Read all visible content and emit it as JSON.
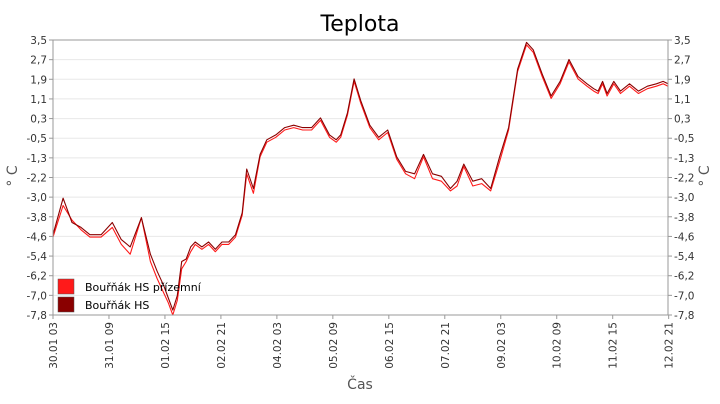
{
  "chart_data": {
    "type": "line",
    "title": "Teplota",
    "xlabel": "Čas",
    "ylabel": "° C",
    "ylim": [
      -7.8,
      3.5
    ],
    "yticks": [
      "3,5",
      "2,7",
      "1,9",
      "1,1",
      "0,3",
      "-0,5",
      "-1,3",
      "-2,2",
      "-3,0",
      "-3,8",
      "-4,6",
      "-5,4",
      "-6,2",
      "-7,0",
      "-7,8"
    ],
    "xticks": [
      "30.01 03",
      "31.01 09",
      "01.02 15",
      "02.02 21",
      "04.02 03",
      "05.02 09",
      "06.02 15",
      "07.02 21",
      "09.02 03",
      "10.02 09",
      "11.02 15",
      "12.02 21"
    ],
    "x_unit_note": "days from 30.01 00:00 (tick spacing 1.25 days)",
    "xlim": [
      0.125,
      13.86
    ],
    "grid": true,
    "legend_position": "bottom-left",
    "colors": {
      "series_1": "#ff1a1a",
      "series_2": "#8a0000",
      "grid": "#e8e8e8"
    },
    "series": [
      {
        "name": "Bouřňák HS přízemní",
        "color": "#ff1a1a",
        "x": [
          0.125,
          0.35,
          0.55,
          0.75,
          0.95,
          1.2,
          1.45,
          1.65,
          1.85,
          2.1,
          2.3,
          2.45,
          2.6,
          2.7,
          2.8,
          2.9,
          3.0,
          3.1,
          3.2,
          3.3,
          3.45,
          3.6,
          3.75,
          3.9,
          4.05,
          4.2,
          4.35,
          4.45,
          4.6,
          4.75,
          4.9,
          5.1,
          5.3,
          5.5,
          5.7,
          5.9,
          6.1,
          6.3,
          6.45,
          6.55,
          6.7,
          6.85,
          7.0,
          7.2,
          7.4,
          7.6,
          7.8,
          8.0,
          8.2,
          8.4,
          8.6,
          8.8,
          9.0,
          9.15,
          9.3,
          9.5,
          9.7,
          9.9,
          10.1,
          10.3,
          10.5,
          10.7,
          10.85,
          11.05,
          11.25,
          11.45,
          11.65,
          11.85,
          12.05,
          12.2,
          12.3,
          12.4,
          12.5,
          12.65,
          12.8,
          13.0,
          13.2,
          13.4,
          13.6,
          13.75,
          13.86
        ],
        "y": [
          -4.6,
          -3.3,
          -3.9,
          -4.3,
          -4.6,
          -4.6,
          -4.2,
          -4.9,
          -5.3,
          -3.8,
          -5.6,
          -6.3,
          -6.9,
          -7.3,
          -7.8,
          -7.2,
          -5.9,
          -5.6,
          -5.2,
          -4.9,
          -5.1,
          -4.9,
          -5.2,
          -4.9,
          -4.9,
          -4.6,
          -3.7,
          -2.0,
          -2.8,
          -1.3,
          -0.7,
          -0.5,
          -0.2,
          -0.1,
          -0.2,
          -0.2,
          0.2,
          -0.5,
          -0.7,
          -0.5,
          0.4,
          1.8,
          0.9,
          -0.1,
          -0.6,
          -0.3,
          -1.4,
          -2.0,
          -2.2,
          -1.3,
          -2.2,
          -2.3,
          -2.7,
          -2.5,
          -1.7,
          -2.5,
          -2.4,
          -2.7,
          -1.5,
          -0.2,
          2.2,
          3.3,
          3.0,
          2.0,
          1.1,
          1.7,
          2.6,
          1.9,
          1.6,
          1.4,
          1.3,
          1.7,
          1.2,
          1.7,
          1.3,
          1.6,
          1.3,
          1.5,
          1.6,
          1.7,
          1.6
        ]
      },
      {
        "name": "Bouřňák HS",
        "color": "#8a0000",
        "x": [
          0.125,
          0.35,
          0.55,
          0.75,
          0.95,
          1.2,
          1.45,
          1.65,
          1.85,
          2.1,
          2.3,
          2.45,
          2.6,
          2.7,
          2.8,
          2.9,
          3.0,
          3.1,
          3.2,
          3.3,
          3.45,
          3.6,
          3.75,
          3.9,
          4.05,
          4.2,
          4.35,
          4.45,
          4.6,
          4.75,
          4.9,
          5.1,
          5.3,
          5.5,
          5.7,
          5.9,
          6.1,
          6.3,
          6.45,
          6.55,
          6.7,
          6.85,
          7.0,
          7.2,
          7.4,
          7.6,
          7.8,
          8.0,
          8.2,
          8.4,
          8.6,
          8.8,
          9.0,
          9.15,
          9.3,
          9.5,
          9.7,
          9.9,
          10.1,
          10.3,
          10.5,
          10.7,
          10.85,
          11.05,
          11.25,
          11.45,
          11.65,
          11.85,
          12.05,
          12.2,
          12.3,
          12.4,
          12.5,
          12.65,
          12.8,
          13.0,
          13.2,
          13.4,
          13.6,
          13.75,
          13.86
        ],
        "y": [
          -4.5,
          -3.0,
          -4.0,
          -4.2,
          -4.5,
          -4.5,
          -4.0,
          -4.7,
          -5.0,
          -3.8,
          -5.3,
          -6.0,
          -6.6,
          -7.1,
          -7.6,
          -7.0,
          -5.6,
          -5.5,
          -5.0,
          -4.8,
          -5.0,
          -4.8,
          -5.1,
          -4.8,
          -4.8,
          -4.5,
          -3.6,
          -1.8,
          -2.6,
          -1.2,
          -0.6,
          -0.4,
          -0.1,
          0.0,
          -0.1,
          -0.1,
          0.3,
          -0.4,
          -0.6,
          -0.4,
          0.5,
          1.9,
          1.0,
          0.0,
          -0.5,
          -0.2,
          -1.3,
          -1.9,
          -2.0,
          -1.2,
          -2.0,
          -2.1,
          -2.6,
          -2.3,
          -1.6,
          -2.3,
          -2.2,
          -2.6,
          -1.3,
          -0.1,
          2.3,
          3.4,
          3.1,
          2.1,
          1.2,
          1.8,
          2.7,
          2.0,
          1.7,
          1.5,
          1.4,
          1.8,
          1.3,
          1.8,
          1.4,
          1.7,
          1.4,
          1.6,
          1.7,
          1.8,
          1.7
        ]
      }
    ]
  }
}
